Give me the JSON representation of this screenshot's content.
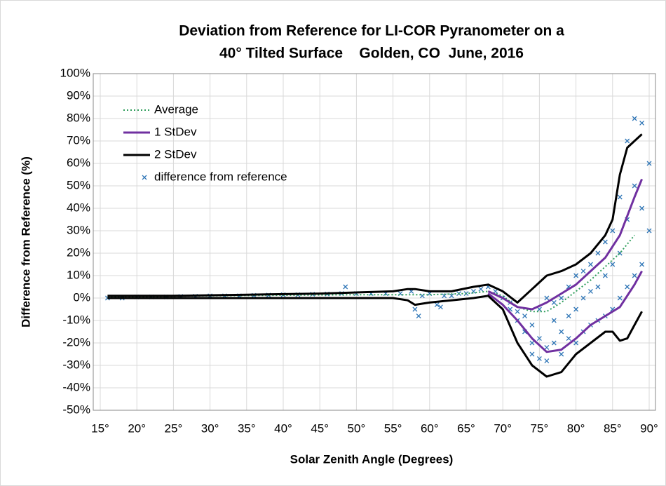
{
  "chart_data": {
    "type": "scatter",
    "title": "Deviation from Reference for LI-COR Pyranometer on a",
    "subtitle": "40° Tilted Surface    Golden, CO  June, 2016",
    "x_label": "Solar Zenith Angle (Degrees)",
    "y_label": "Difference from Reference (%)",
    "xlim": [
      15,
      90
    ],
    "ylim": [
      -50,
      100
    ],
    "xticks": [
      {
        "value": 15,
        "label": "15°"
      },
      {
        "value": 20,
        "label": "20°"
      },
      {
        "value": 25,
        "label": "25°"
      },
      {
        "value": 30,
        "label": "30°"
      },
      {
        "value": 35,
        "label": "35°"
      },
      {
        "value": 40,
        "label": "40°"
      },
      {
        "value": 45,
        "label": "45°"
      },
      {
        "value": 50,
        "label": "50°"
      },
      {
        "value": 55,
        "label": "55°"
      },
      {
        "value": 60,
        "label": "60°"
      },
      {
        "value": 65,
        "label": "65°"
      },
      {
        "value": 70,
        "label": "70°"
      },
      {
        "value": 75,
        "label": "75°"
      },
      {
        "value": 80,
        "label": "80°"
      },
      {
        "value": 85,
        "label": "85°"
      },
      {
        "value": 90,
        "label": "90°"
      }
    ],
    "yticks": [
      {
        "value": -50,
        "label": "-50%"
      },
      {
        "value": -40,
        "label": "-40%"
      },
      {
        "value": -30,
        "label": "-30%"
      },
      {
        "value": -20,
        "label": "-20%"
      },
      {
        "value": -10,
        "label": "-10%"
      },
      {
        "value": 0,
        "label": "0%"
      },
      {
        "value": 10,
        "label": "10%"
      },
      {
        "value": 20,
        "label": "20%"
      },
      {
        "value": 30,
        "label": "30%"
      },
      {
        "value": 40,
        "label": "40%"
      },
      {
        "value": 50,
        "label": "50%"
      },
      {
        "value": 60,
        "label": "60%"
      },
      {
        "value": 70,
        "label": "70%"
      },
      {
        "value": 80,
        "label": "80%"
      },
      {
        "value": 90,
        "label": "90%"
      },
      {
        "value": 100,
        "label": "100%"
      }
    ],
    "grid": true,
    "legend": "top-left",
    "series": [
      {
        "name": "Average",
        "type": "line",
        "color": "#2e9e5b",
        "dash": "dotted",
        "x": [
          16,
          30,
          50,
          60,
          65,
          68,
          70,
          72,
          74,
          76,
          78,
          80,
          82,
          84,
          86,
          88
        ],
        "values": [
          0.5,
          1,
          1.5,
          1.5,
          2,
          3,
          1,
          -4,
          -6,
          -6,
          -2,
          3,
          8,
          14,
          20,
          28
        ]
      },
      {
        "name": "1 StDev",
        "type": "band-lines",
        "color": "#7030a0",
        "x": [
          68,
          70,
          72,
          74,
          76,
          78,
          80,
          82,
          84,
          86,
          88,
          89
        ],
        "upper": [
          3,
          0,
          -4,
          -5,
          -2,
          2,
          6,
          12,
          18,
          28,
          45,
          53
        ],
        "lower": [
          2,
          -3,
          -10,
          -18,
          -24,
          -23,
          -18,
          -12,
          -8,
          -4,
          6,
          12
        ]
      },
      {
        "name": "2 StDev",
        "type": "band-lines",
        "color": "#000000",
        "x": [
          16,
          25,
          35,
          45,
          55,
          57,
          58,
          60,
          63,
          66,
          68,
          70,
          72,
          74,
          76,
          78,
          80,
          82,
          84,
          85,
          86,
          87,
          88,
          89
        ],
        "upper": [
          1,
          1,
          1.5,
          2,
          3,
          4,
          4,
          3,
          3,
          5,
          6,
          3,
          -2,
          4,
          10,
          12,
          15,
          20,
          28,
          35,
          55,
          67,
          70,
          73
        ],
        "lower": [
          0,
          0,
          0,
          0,
          0,
          -1,
          -3,
          -2,
          -1,
          0,
          1,
          -5,
          -20,
          -30,
          -35,
          -33,
          -25,
          -20,
          -15,
          -15,
          -19,
          -18,
          -12,
          -6
        ]
      },
      {
        "name": "difference from reference",
        "type": "scatter",
        "color": "#2e75b6",
        "x": [
          16,
          18,
          20,
          22,
          24,
          26,
          28,
          30,
          32,
          34,
          36,
          38,
          40,
          42,
          44,
          46,
          48,
          48.5,
          50,
          52,
          54,
          56,
          57.5,
          58,
          58.5,
          59,
          60,
          61,
          61.5,
          62,
          63,
          64,
          65,
          66,
          67,
          68,
          69,
          70,
          71,
          71,
          72,
          72,
          73,
          73,
          74,
          74,
          74,
          75,
          75,
          75,
          76,
          76,
          76,
          77,
          77,
          77,
          78,
          78,
          78,
          79,
          79,
          79,
          80,
          80,
          80,
          81,
          81,
          81,
          82,
          82,
          82,
          83,
          83,
          83,
          84,
          84,
          84,
          85,
          85,
          85,
          86,
          86,
          86,
          87,
          87,
          87,
          88,
          88,
          88,
          89,
          89,
          89,
          90,
          90
        ],
        "values": [
          0,
          0,
          0.5,
          0.5,
          0.5,
          0.7,
          0.8,
          1,
          1,
          1,
          1.2,
          1.3,
          1.5,
          1.5,
          1.7,
          1.8,
          2,
          5,
          2,
          2,
          2,
          2,
          3,
          -5,
          -8,
          1,
          2,
          -3,
          -4,
          1,
          1,
          2,
          2,
          3,
          4,
          5,
          3,
          0,
          -2,
          -5,
          -6,
          -10,
          -8,
          -15,
          -12,
          -20,
          -25,
          -5,
          -18,
          -27,
          -22,
          -28,
          0,
          -20,
          -10,
          -2,
          -25,
          -15,
          0,
          -18,
          -8,
          5,
          -20,
          -5,
          10,
          -15,
          0,
          12,
          -12,
          3,
          15,
          -10,
          5,
          20,
          -8,
          10,
          25,
          -5,
          15,
          30,
          0,
          20,
          45,
          5,
          35,
          70,
          10,
          50,
          80,
          15,
          40,
          78,
          30,
          60
        ]
      }
    ]
  }
}
